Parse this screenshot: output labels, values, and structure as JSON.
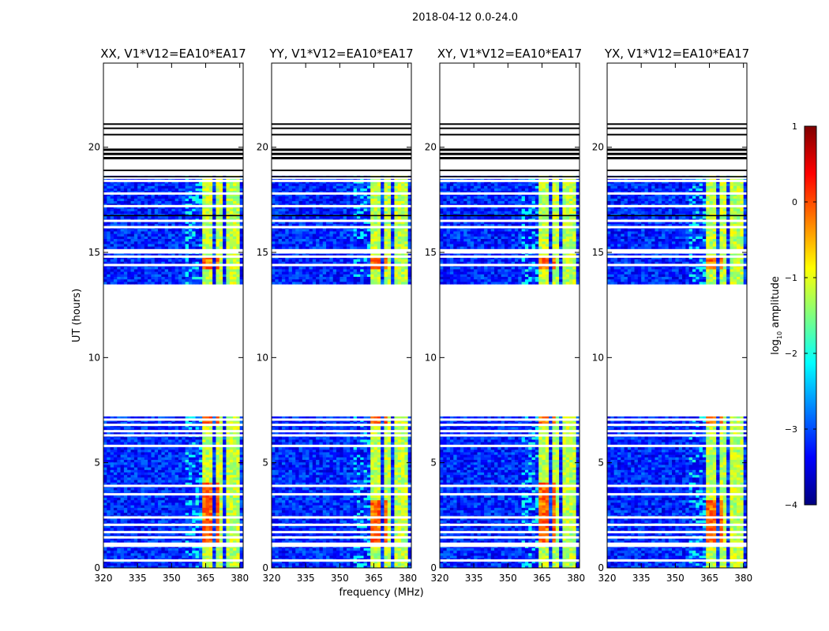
{
  "suptitle": "2018-04-12 0.0-24.0",
  "chart_data": {
    "type": "heatmap",
    "xlabel": "frequency (MHz)",
    "ylabel": "UT (hours)",
    "xlim": [
      320,
      381.5
    ],
    "ylim": [
      0,
      24
    ],
    "xticks": [
      320,
      335,
      350,
      365,
      380
    ],
    "yticks": [
      0,
      5,
      10,
      15,
      20
    ],
    "colorbar": {
      "label": "log10 amplitude",
      "label_main": "log",
      "label_sub": "10",
      "label_rest": " amplitude",
      "ticks": [
        1,
        0,
        -1,
        -2,
        -3,
        -4
      ],
      "tick_labels": [
        "1",
        "0",
        "−1",
        "−2",
        "−3",
        "−4"
      ],
      "range": [
        -4,
        1
      ]
    },
    "colormap": [
      "#00007f",
      "#0000ff",
      "#007fff",
      "#00ffff",
      "#7fff7f",
      "#ffff00",
      "#ff7f00",
      "#ff0000",
      "#7f0000"
    ],
    "panels": [
      {
        "title": "XX, V1*V12=EA10*EA17",
        "polarization": "XX"
      },
      {
        "title": "YY, V1*V12=EA10*EA17",
        "polarization": "YY"
      },
      {
        "title": "XY, V1*V12=EA10*EA17",
        "polarization": "XY"
      },
      {
        "title": "YX, V1*V12=EA10*EA17",
        "polarization": "YX"
      }
    ],
    "data_blocks_ut": [
      [
        0,
        7.2
      ],
      [
        13.5,
        18.6
      ]
    ],
    "flagged_gap_ut": [
      [
        7.2,
        13.5
      ],
      [
        18.6,
        24
      ]
    ],
    "flagged_lines_ut": [
      0.35,
      1.05,
      1.15,
      1.45,
      1.7,
      2.05,
      2.4,
      3.5,
      3.9,
      5.8,
      6.3,
      6.5,
      6.8,
      7.05,
      14.4,
      14.8,
      15.0,
      15.1,
      16.2,
      16.5,
      17.2,
      17.8,
      18.4,
      18.55,
      18.7
    ],
    "rfi_channels_mhz": [
      [
        363,
        367.5
      ],
      [
        368.5,
        372
      ],
      [
        373,
        376.5
      ],
      [
        377,
        380
      ]
    ],
    "background_log_amplitude": -3.2,
    "rfi_log_amplitude": -1.2,
    "rfi_peak_log_amplitude": 0.2
  }
}
